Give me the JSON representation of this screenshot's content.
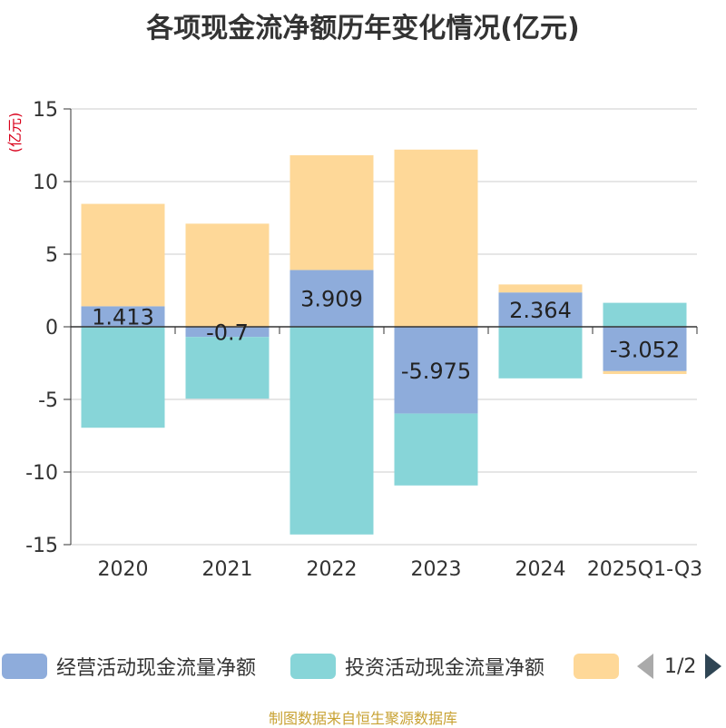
{
  "header": {
    "title": "各项现金流净额历年变化情况(亿元)"
  },
  "chart_data": {
    "type": "bar",
    "stacked": true,
    "title": "各项现金流净额历年变化情况(亿元)",
    "ylabel": "(亿元)",
    "xlabel": "",
    "ylim": [
      -15,
      15
    ],
    "yticks": [
      -15,
      -10,
      -5,
      0,
      5,
      10,
      15
    ],
    "grid": true,
    "legend_position": "bottom",
    "categories": [
      "2020",
      "2021",
      "2022",
      "2023",
      "2024",
      "2025Q1-Q3"
    ],
    "series": [
      {
        "name": "经营活动现金流量净额",
        "color": "#8eacdb",
        "values": [
          1.413,
          -0.7,
          3.909,
          -5.975,
          2.364,
          -3.052
        ],
        "labels": [
          "1.413",
          "-0.7",
          "3.909",
          "-5.975",
          "2.364",
          "-3.052"
        ]
      },
      {
        "name": "投资活动现金流量净额",
        "color": "#87d5d8",
        "values": [
          -6.95,
          -4.25,
          -14.3,
          -4.95,
          -3.55,
          1.65
        ]
      },
      {
        "name": "",
        "color": "#fed898",
        "values": [
          7.05,
          7.1,
          7.9,
          12.2,
          0.55,
          -0.2
        ]
      }
    ]
  },
  "legend": {
    "items": [
      {
        "label": "经营活动现金流量净额",
        "color": "#8eacdb"
      },
      {
        "label": "投资活动现金流量净额",
        "color": "#87d5d8"
      },
      {
        "label": "",
        "color": "#fed898"
      }
    ],
    "page_text": "1/2"
  },
  "footer": {
    "source": "制图数据来自恒生聚源数据库"
  }
}
